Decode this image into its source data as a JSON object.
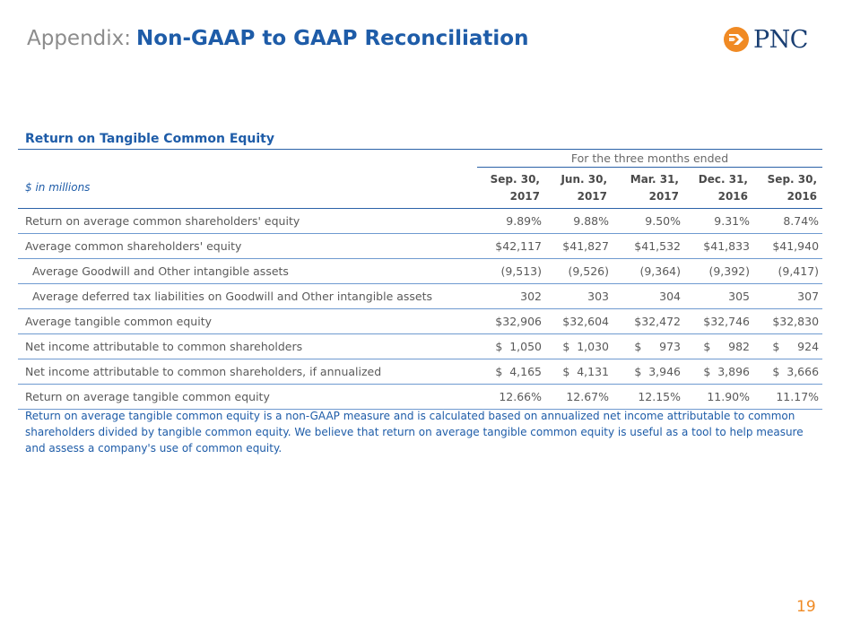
{
  "header": {
    "prefix": "Appendix:",
    "title": "Non-GAAP to GAAP Reconciliation",
    "logo_text": "PNC"
  },
  "section_title": "Return on Tangible Common Equity",
  "table": {
    "period_label": "For the three months ended",
    "unit_label": "$ in millions",
    "columns": [
      {
        "line1": "Sep. 30,",
        "line2": "2017"
      },
      {
        "line1": "Jun. 30,",
        "line2": "2017"
      },
      {
        "line1": "Mar. 31,",
        "line2": "2017"
      },
      {
        "line1": "Dec. 31,",
        "line2": "2016"
      },
      {
        "line1": "Sep. 30,",
        "line2": "2016"
      }
    ],
    "rows": [
      {
        "label": "Return on average common shareholders' equity",
        "values": [
          "9.89%",
          "9.88%",
          "9.50%",
          "9.31%",
          "8.74%"
        ]
      },
      {
        "label": "Average common shareholders' equity",
        "values": [
          "$42,117",
          "$41,827",
          "$41,532",
          "$41,833",
          "$41,940"
        ]
      },
      {
        "label": "Average Goodwill and Other intangible assets",
        "values": [
          "(9,513)",
          "(9,526)",
          "(9,364)",
          "(9,392)",
          "(9,417)"
        ]
      },
      {
        "label": "Average deferred tax liabilities on Goodwill and Other intangible assets",
        "values": [
          "302",
          "303",
          "304",
          "305",
          "307"
        ]
      },
      {
        "label": "Average tangible common equity",
        "values": [
          "$32,906",
          "$32,604",
          "$32,472",
          "$32,746",
          "$32,830"
        ]
      },
      {
        "label": "Net income attributable to common shareholders",
        "values": [
          "$  1,050",
          "$  1,030",
          "$     973",
          "$     982",
          "$     924"
        ]
      },
      {
        "label": "Net income attributable to common shareholders, if annualized",
        "values": [
          "$  4,165",
          "$  4,131",
          "$  3,946",
          "$  3,896",
          "$  3,666"
        ]
      },
      {
        "label": "Return on average tangible common equity",
        "values": [
          "12.66%",
          "12.67%",
          "12.15%",
          "11.90%",
          "11.17%"
        ]
      }
    ]
  },
  "note": "Return on average tangible common equity is a non-GAAP measure and is calculated based on annualized net income attributable to common shareholders divided by tangible common equity.  We believe that return on average tangible common equity is useful as a tool to help measure and assess a company's use of common equity.",
  "page_number": "19",
  "colors": {
    "accent": "#1e5ca8",
    "logo_orange": "#f08a24",
    "logo_navy": "#1a3f73"
  }
}
